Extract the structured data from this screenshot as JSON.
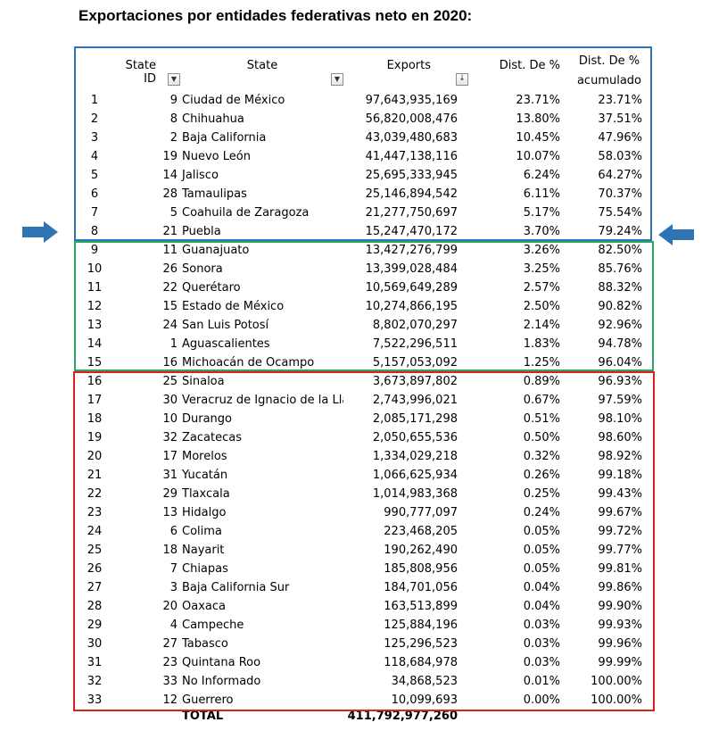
{
  "title": "Exportaciones por entidades federativas neto en 2020:",
  "colors": {
    "top_box": "#2e74b5",
    "middle_box": "#2aa862",
    "bottom_box": "#d9221c",
    "arrow": "#2e74b5"
  },
  "icons": {
    "filter": "filter-dropdown-icon",
    "sort": "sort-descending-icon",
    "arrows": "arrow-icon"
  },
  "columns": {
    "state_id": "State ID",
    "state": "State",
    "exports": "Exports",
    "dist": "Dist. De %",
    "acc_line1": "Dist. De %",
    "acc_line2": "acumulado"
  },
  "rows": [
    {
      "rank": "1",
      "id": "9",
      "state": "Ciudad de México",
      "exports": "97,643,935,169",
      "dist": "23.71%",
      "acc": "23.71%"
    },
    {
      "rank": "2",
      "id": "8",
      "state": "Chihuahua",
      "exports": "56,820,008,476",
      "dist": "13.80%",
      "acc": "37.51%"
    },
    {
      "rank": "3",
      "id": "2",
      "state": "Baja California",
      "exports": "43,039,480,683",
      "dist": "10.45%",
      "acc": "47.96%"
    },
    {
      "rank": "4",
      "id": "19",
      "state": "Nuevo León",
      "exports": "41,447,138,116",
      "dist": "10.07%",
      "acc": "58.03%"
    },
    {
      "rank": "5",
      "id": "14",
      "state": "Jalisco",
      "exports": "25,695,333,945",
      "dist": "6.24%",
      "acc": "64.27%"
    },
    {
      "rank": "6",
      "id": "28",
      "state": "Tamaulipas",
      "exports": "25,146,894,542",
      "dist": "6.11%",
      "acc": "70.37%"
    },
    {
      "rank": "7",
      "id": "5",
      "state": "Coahuila de Zaragoza",
      "exports": "21,277,750,697",
      "dist": "5.17%",
      "acc": "75.54%"
    },
    {
      "rank": "8",
      "id": "21",
      "state": "Puebla",
      "exports": "15,247,470,172",
      "dist": "3.70%",
      "acc": "79.24%"
    },
    {
      "rank": "9",
      "id": "11",
      "state": "Guanajuato",
      "exports": "13,427,276,799",
      "dist": "3.26%",
      "acc": "82.50%"
    },
    {
      "rank": "10",
      "id": "26",
      "state": "Sonora",
      "exports": "13,399,028,484",
      "dist": "3.25%",
      "acc": "85.76%"
    },
    {
      "rank": "11",
      "id": "22",
      "state": "Querétaro",
      "exports": "10,569,649,289",
      "dist": "2.57%",
      "acc": "88.32%"
    },
    {
      "rank": "12",
      "id": "15",
      "state": "Estado de México",
      "exports": "10,274,866,195",
      "dist": "2.50%",
      "acc": "90.82%"
    },
    {
      "rank": "13",
      "id": "24",
      "state": "San Luis Potosí",
      "exports": "8,802,070,297",
      "dist": "2.14%",
      "acc": "92.96%"
    },
    {
      "rank": "14",
      "id": "1",
      "state": "Aguascalientes",
      "exports": "7,522,296,511",
      "dist": "1.83%",
      "acc": "94.78%"
    },
    {
      "rank": "15",
      "id": "16",
      "state": "Michoacán de Ocampo",
      "exports": "5,157,053,092",
      "dist": "1.25%",
      "acc": "96.04%"
    },
    {
      "rank": "16",
      "id": "25",
      "state": "Sinaloa",
      "exports": "3,673,897,802",
      "dist": "0.89%",
      "acc": "96.93%"
    },
    {
      "rank": "17",
      "id": "30",
      "state": "Veracruz de Ignacio de la Lla",
      "exports": "2,743,996,021",
      "dist": "0.67%",
      "acc": "97.59%"
    },
    {
      "rank": "18",
      "id": "10",
      "state": "Durango",
      "exports": "2,085,171,298",
      "dist": "0.51%",
      "acc": "98.10%"
    },
    {
      "rank": "19",
      "id": "32",
      "state": "Zacatecas",
      "exports": "2,050,655,536",
      "dist": "0.50%",
      "acc": "98.60%"
    },
    {
      "rank": "20",
      "id": "17",
      "state": "Morelos",
      "exports": "1,334,029,218",
      "dist": "0.32%",
      "acc": "98.92%"
    },
    {
      "rank": "21",
      "id": "31",
      "state": "Yucatán",
      "exports": "1,066,625,934",
      "dist": "0.26%",
      "acc": "99.18%"
    },
    {
      "rank": "22",
      "id": "29",
      "state": "Tlaxcala",
      "exports": "1,014,983,368",
      "dist": "0.25%",
      "acc": "99.43%"
    },
    {
      "rank": "23",
      "id": "13",
      "state": "Hidalgo",
      "exports": "990,777,097",
      "dist": "0.24%",
      "acc": "99.67%"
    },
    {
      "rank": "24",
      "id": "6",
      "state": "Colima",
      "exports": "223,468,205",
      "dist": "0.05%",
      "acc": "99.72%"
    },
    {
      "rank": "25",
      "id": "18",
      "state": "Nayarit",
      "exports": "190,262,490",
      "dist": "0.05%",
      "acc": "99.77%"
    },
    {
      "rank": "26",
      "id": "7",
      "state": "Chiapas",
      "exports": "185,808,956",
      "dist": "0.05%",
      "acc": "99.81%"
    },
    {
      "rank": "27",
      "id": "3",
      "state": "Baja California Sur",
      "exports": "184,701,056",
      "dist": "0.04%",
      "acc": "99.86%"
    },
    {
      "rank": "28",
      "id": "20",
      "state": "Oaxaca",
      "exports": "163,513,899",
      "dist": "0.04%",
      "acc": "99.90%"
    },
    {
      "rank": "29",
      "id": "4",
      "state": "Campeche",
      "exports": "125,884,196",
      "dist": "0.03%",
      "acc": "99.93%"
    },
    {
      "rank": "30",
      "id": "27",
      "state": "Tabasco",
      "exports": "125,296,523",
      "dist": "0.03%",
      "acc": "99.96%"
    },
    {
      "rank": "31",
      "id": "23",
      "state": "Quintana Roo",
      "exports": "118,684,978",
      "dist": "0.03%",
      "acc": "99.99%"
    },
    {
      "rank": "32",
      "id": "33",
      "state": "No Informado",
      "exports": "34,868,523",
      "dist": "0.01%",
      "acc": "100.00%"
    },
    {
      "rank": "33",
      "id": "12",
      "state": "Guerrero",
      "exports": "10,099,693",
      "dist": "0.00%",
      "acc": "100.00%"
    }
  ],
  "total": {
    "label": "TOTAL",
    "exports": "411,792,977,260"
  }
}
